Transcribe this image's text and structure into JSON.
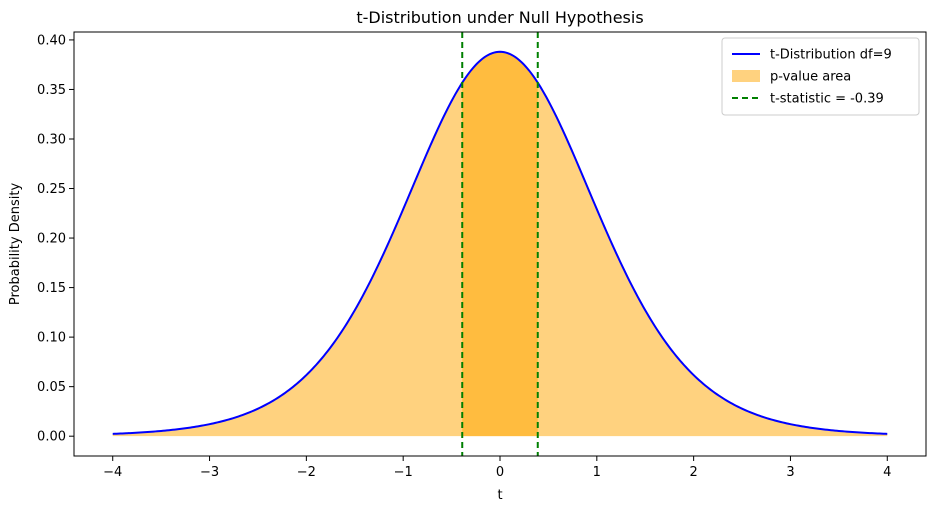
{
  "chart_data": {
    "type": "area",
    "title": "t-Distribution under Null Hypothesis",
    "xlabel": "t",
    "ylabel": "Probability Density",
    "xlim": [
      -4.4,
      4.4
    ],
    "ylim": [
      -0.02,
      0.408
    ],
    "xticks": [
      -4,
      -3,
      -2,
      -1,
      0,
      1,
      2,
      3,
      4
    ],
    "xtick_labels": [
      "−4",
      "−3",
      "−2",
      "−1",
      "0",
      "1",
      "2",
      "3",
      "4"
    ],
    "yticks": [
      0.0,
      0.05,
      0.1,
      0.15,
      0.2,
      0.25,
      0.3,
      0.35,
      0.4
    ],
    "ytick_labels": [
      "0.00",
      "0.05",
      "0.10",
      "0.15",
      "0.20",
      "0.25",
      "0.30",
      "0.35",
      "0.40"
    ],
    "grid": false,
    "legend_position": "top-right",
    "distribution": {
      "df": 9,
      "x_range": [
        -4,
        4
      ]
    },
    "x": [
      -4,
      -3.5,
      -3,
      -2.5,
      -2,
      -1.5,
      -1,
      -0.5,
      0,
      0.5,
      1,
      1.5,
      2,
      2.5,
      3,
      3.5,
      4
    ],
    "y": [
      0.0028,
      0.0056,
      0.0114,
      0.0241,
      0.0518,
      0.1082,
      0.2032,
      0.3232,
      0.388,
      0.3232,
      0.2032,
      0.1082,
      0.0518,
      0.0241,
      0.0114,
      0.0056,
      0.0028
    ],
    "series": [
      {
        "name": "t-Distribution df=9",
        "kind": "line",
        "color": "#0000ff"
      },
      {
        "name": "p-value area",
        "kind": "fill",
        "color": "#ffa500",
        "alpha": 0.5
      },
      {
        "name": "t-statistic = -0.39",
        "kind": "vline",
        "color": "#008000",
        "style": "dashed",
        "x_values": [
          -0.39,
          0.39
        ]
      }
    ]
  }
}
